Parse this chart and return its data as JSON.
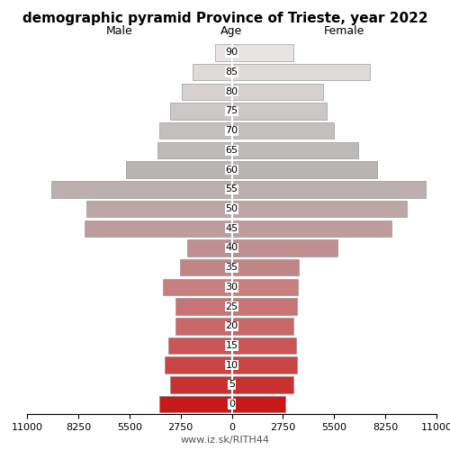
{
  "title": "demographic pyramid Province of Trieste, year 2022",
  "male_label": "Male",
  "female_label": "Female",
  "age_label": "Age",
  "footer": "www.iz.sk/RITH44",
  "age_groups": [
    0,
    5,
    10,
    15,
    20,
    25,
    30,
    35,
    40,
    45,
    50,
    55,
    60,
    65,
    70,
    75,
    80,
    85,
    90
  ],
  "male_values": [
    3900,
    3300,
    3600,
    3400,
    3000,
    3000,
    3700,
    2800,
    2400,
    7900,
    7800,
    9700,
    5700,
    4000,
    3900,
    3300,
    2700,
    2100,
    900
  ],
  "female_values": [
    2900,
    3300,
    3500,
    3450,
    3300,
    3500,
    3550,
    3600,
    5700,
    8600,
    9400,
    10400,
    7800,
    6800,
    5500,
    5100,
    4900,
    7400,
    3300
  ],
  "xlim": 11000,
  "colors": [
    "#c8191a",
    "#c93030",
    "#c94545",
    "#c95555",
    "#c86868",
    "#c87474",
    "#c87f7f",
    "#c08585",
    "#c09090",
    "#bf9c9c",
    "#bda6a6",
    "#bcafaf",
    "#b8b4b2",
    "#bcbab8",
    "#c3bfbe",
    "#cbc7c6",
    "#d6d0d0",
    "#dedad8",
    "#e8e4e4"
  ],
  "background_color": "#ffffff",
  "bar_edge_color": "#888888",
  "bar_linewidth": 0.4,
  "bar_height": 0.85,
  "title_fontsize": 11,
  "label_fontsize": 9,
  "tick_fontsize": 8,
  "footer_fontsize": 8
}
